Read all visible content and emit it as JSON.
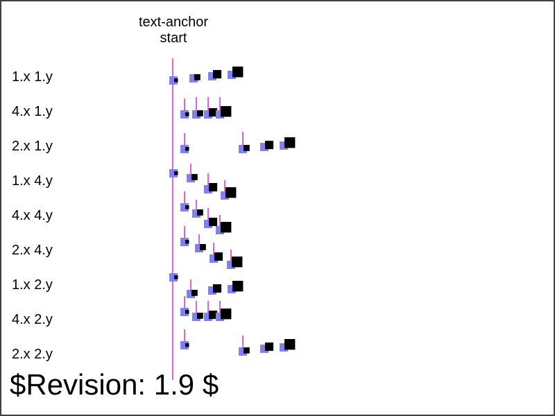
{
  "title": {
    "line1": "text-anchor",
    "line2": "start"
  },
  "row_labels": [
    "1.x 1.y",
    "4.x 1.y",
    "2.x 1.y",
    "1.x 4.y",
    "4.x 4.y",
    "2.x 4.y",
    "1.x 2.y",
    "4.x 2.y",
    "2.x 2.y"
  ],
  "revision": "$Revision: 1.9 $",
  "colors": {
    "frame": "#000000",
    "guide_line": "#cc33cc",
    "marker": "#8080f0",
    "glyph": "#000000"
  }
}
